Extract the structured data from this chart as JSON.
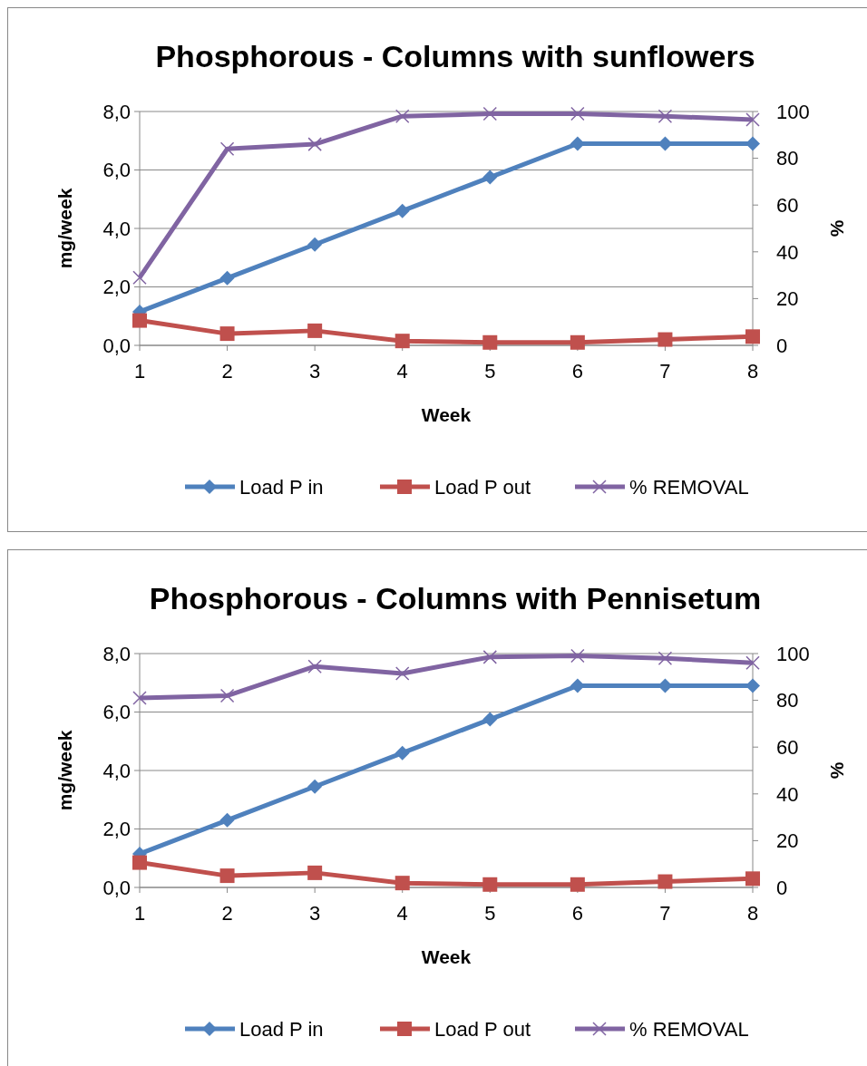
{
  "chart_data": [
    {
      "type": "line",
      "title": "Phosphorous - Columns with sunflowers",
      "xlabel": "Week",
      "ylabel": "mg/week",
      "y2label": "%",
      "x": [
        1,
        2,
        3,
        4,
        5,
        6,
        7,
        8
      ],
      "xlim": [
        1,
        8
      ],
      "xticks": [
        1,
        2,
        3,
        4,
        5,
        6,
        7,
        8
      ],
      "ylim": [
        0,
        8
      ],
      "yticks": [
        {
          "value": 0,
          "label": "0,0"
        },
        {
          "value": 2,
          "label": "2,0"
        },
        {
          "value": 4,
          "label": "4,0"
        },
        {
          "value": 6,
          "label": "6,0"
        },
        {
          "value": 8,
          "label": "8,0"
        }
      ],
      "y2lim": [
        0,
        100
      ],
      "y2ticks": [
        0,
        20,
        40,
        60,
        80,
        100
      ],
      "grid": "y",
      "legend": "bottom",
      "series": [
        {
          "name": "Load P in",
          "color": "#4f81bd",
          "marker": "diamond",
          "values": [
            1.15,
            2.3,
            3.45,
            4.6,
            5.75,
            6.9,
            6.9,
            6.9
          ]
        },
        {
          "name": "Load P out",
          "color": "#c0504d",
          "marker": "square",
          "values": [
            0.85,
            0.4,
            0.5,
            0.15,
            0.1,
            0.1,
            0.2,
            0.3
          ]
        },
        {
          "name": "% REMOVAL",
          "color": "#8064a2",
          "marker": "cross",
          "axis": "y2",
          "values": [
            29,
            84,
            86,
            98,
            99,
            99,
            98,
            96.5
          ]
        }
      ]
    },
    {
      "type": "line",
      "title": "Phosphorous - Columns with Pennisetum",
      "xlabel": "Week",
      "ylabel": "mg/week",
      "y2label": "%",
      "x": [
        1,
        2,
        3,
        4,
        5,
        6,
        7,
        8
      ],
      "xlim": [
        1,
        8
      ],
      "xticks": [
        1,
        2,
        3,
        4,
        5,
        6,
        7,
        8
      ],
      "ylim": [
        0,
        8
      ],
      "yticks": [
        {
          "value": 0,
          "label": "0,0"
        },
        {
          "value": 2,
          "label": "2,0"
        },
        {
          "value": 4,
          "label": "4,0"
        },
        {
          "value": 6,
          "label": "6,0"
        },
        {
          "value": 8,
          "label": "8,0"
        }
      ],
      "y2lim": [
        0,
        100
      ],
      "y2ticks": [
        0,
        20,
        40,
        60,
        80,
        100
      ],
      "grid": "y",
      "legend": "bottom",
      "series": [
        {
          "name": "Load P in",
          "color": "#4f81bd",
          "marker": "diamond",
          "values": [
            1.15,
            2.3,
            3.45,
            4.6,
            5.75,
            6.9,
            6.9,
            6.9
          ]
        },
        {
          "name": "Load P out",
          "color": "#c0504d",
          "marker": "square",
          "values": [
            0.85,
            0.4,
            0.5,
            0.15,
            0.1,
            0.1,
            0.2,
            0.3
          ]
        },
        {
          "name": "% REMOVAL",
          "color": "#8064a2",
          "marker": "cross",
          "axis": "y2",
          "values": [
            81,
            82,
            94.5,
            91.5,
            98.5,
            99,
            98,
            96
          ]
        }
      ]
    }
  ]
}
